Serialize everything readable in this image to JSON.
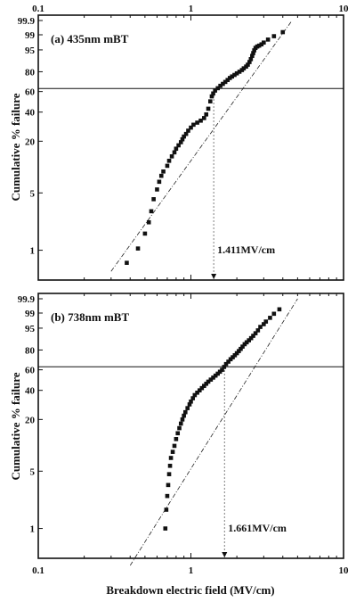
{
  "figure": {
    "xlabel": "Breakdown electric field (MV/cm)",
    "ylabel": "Cumulative % failure"
  },
  "chart_data": [
    {
      "type": "scatter",
      "panel_label": "(a) 435nm mBT",
      "xscale": "log",
      "yscale": "weibull",
      "xlim": [
        0.1,
        10
      ],
      "x_ticks": [
        "0.1",
        "1",
        "10"
      ],
      "y_ticks": [
        "1",
        "5",
        "20",
        "40",
        "60",
        "80",
        "95",
        "99",
        "99.9"
      ],
      "reference_line_y": 63.2,
      "characteristic_field": 1.411,
      "annotation": "1.411MV/cm",
      "fit_line": {
        "x": [
          0.3,
          4.6
        ],
        "y": [
          0.55,
          99.9
        ]
      },
      "points": {
        "x": [
          0.38,
          0.45,
          0.5,
          0.53,
          0.55,
          0.57,
          0.6,
          0.62,
          0.64,
          0.66,
          0.7,
          0.72,
          0.75,
          0.78,
          0.8,
          0.83,
          0.86,
          0.88,
          0.9,
          0.93,
          0.96,
          1.0,
          1.04,
          1.1,
          1.16,
          1.22,
          1.26,
          1.3,
          1.34,
          1.37,
          1.4,
          1.44,
          1.5,
          1.56,
          1.62,
          1.68,
          1.74,
          1.8,
          1.86,
          1.93,
          2.0,
          2.08,
          2.16,
          2.22,
          2.3,
          2.36,
          2.42,
          2.47,
          2.52,
          2.56,
          2.6,
          2.65,
          2.72,
          2.8,
          2.9,
          3.0,
          3.2,
          3.5,
          4.0
        ],
        "y": [
          0.7,
          1.05,
          1.6,
          2.2,
          3.0,
          4.2,
          5.5,
          6.8,
          8.0,
          9.0,
          10.5,
          12.0,
          13.5,
          15.0,
          16.5,
          18.0,
          19.5,
          21.0,
          22.5,
          24.0,
          26.0,
          28.0,
          30.0,
          31.5,
          33.0,
          35.0,
          38.0,
          43.0,
          50.0,
          55.0,
          58.0,
          61.0,
          63.5,
          66.0,
          68.0,
          70.0,
          72.0,
          74.0,
          75.5,
          77.0,
          78.5,
          80.0,
          81.5,
          83.0,
          84.5,
          86.0,
          88.0,
          90.0,
          92.0,
          93.5,
          94.8,
          95.8,
          96.3,
          96.6,
          97.0,
          97.5,
          98.2,
          98.8,
          99.3
        ]
      }
    },
    {
      "type": "scatter",
      "panel_label": "(b) 738nm mBT",
      "xscale": "log",
      "yscale": "weibull",
      "xlim": [
        0.1,
        10
      ],
      "x_ticks": [
        "0.1",
        "1",
        "10"
      ],
      "y_ticks": [
        "1",
        "5",
        "20",
        "40",
        "60",
        "80",
        "95",
        "99",
        "99.9"
      ],
      "reference_line_y": 63.2,
      "characteristic_field": 1.661,
      "annotation": "1.661MV/cm",
      "fit_line": {
        "x": [
          0.4,
          5.0
        ],
        "y": [
          0.35,
          99.9
        ]
      },
      "points": {
        "x": [
          0.68,
          0.69,
          0.7,
          0.71,
          0.72,
          0.73,
          0.74,
          0.76,
          0.78,
          0.8,
          0.82,
          0.84,
          0.86,
          0.88,
          0.9,
          0.92,
          0.95,
          0.98,
          1.0,
          1.03,
          1.06,
          1.1,
          1.14,
          1.18,
          1.22,
          1.26,
          1.3,
          1.35,
          1.4,
          1.45,
          1.5,
          1.55,
          1.6,
          1.65,
          1.7,
          1.76,
          1.82,
          1.88,
          1.94,
          2.0,
          2.06,
          2.12,
          2.18,
          2.25,
          2.32,
          2.4,
          2.48,
          2.56,
          2.65,
          2.75,
          2.85,
          3.0,
          3.1,
          3.3,
          3.5,
          3.8
        ],
        "y": [
          1.0,
          1.7,
          2.5,
          3.4,
          4.6,
          5.8,
          7.2,
          8.5,
          10.0,
          12.0,
          14.0,
          16.0,
          18.0,
          20.0,
          22.0,
          24.0,
          26.5,
          29.0,
          31.0,
          33.5,
          36.0,
          38.0,
          40.0,
          42.0,
          44.0,
          46.0,
          48.0,
          50.0,
          52.0,
          54.0,
          56.0,
          58.0,
          60.0,
          63.0,
          66.0,
          68.5,
          71.0,
          73.0,
          75.0,
          77.0,
          79.0,
          81.0,
          83.0,
          85.0,
          86.5,
          88.0,
          89.5,
          91.0,
          92.5,
          94.0,
          95.5,
          96.5,
          97.3,
          98.2,
          98.9,
          99.4
        ]
      }
    }
  ]
}
